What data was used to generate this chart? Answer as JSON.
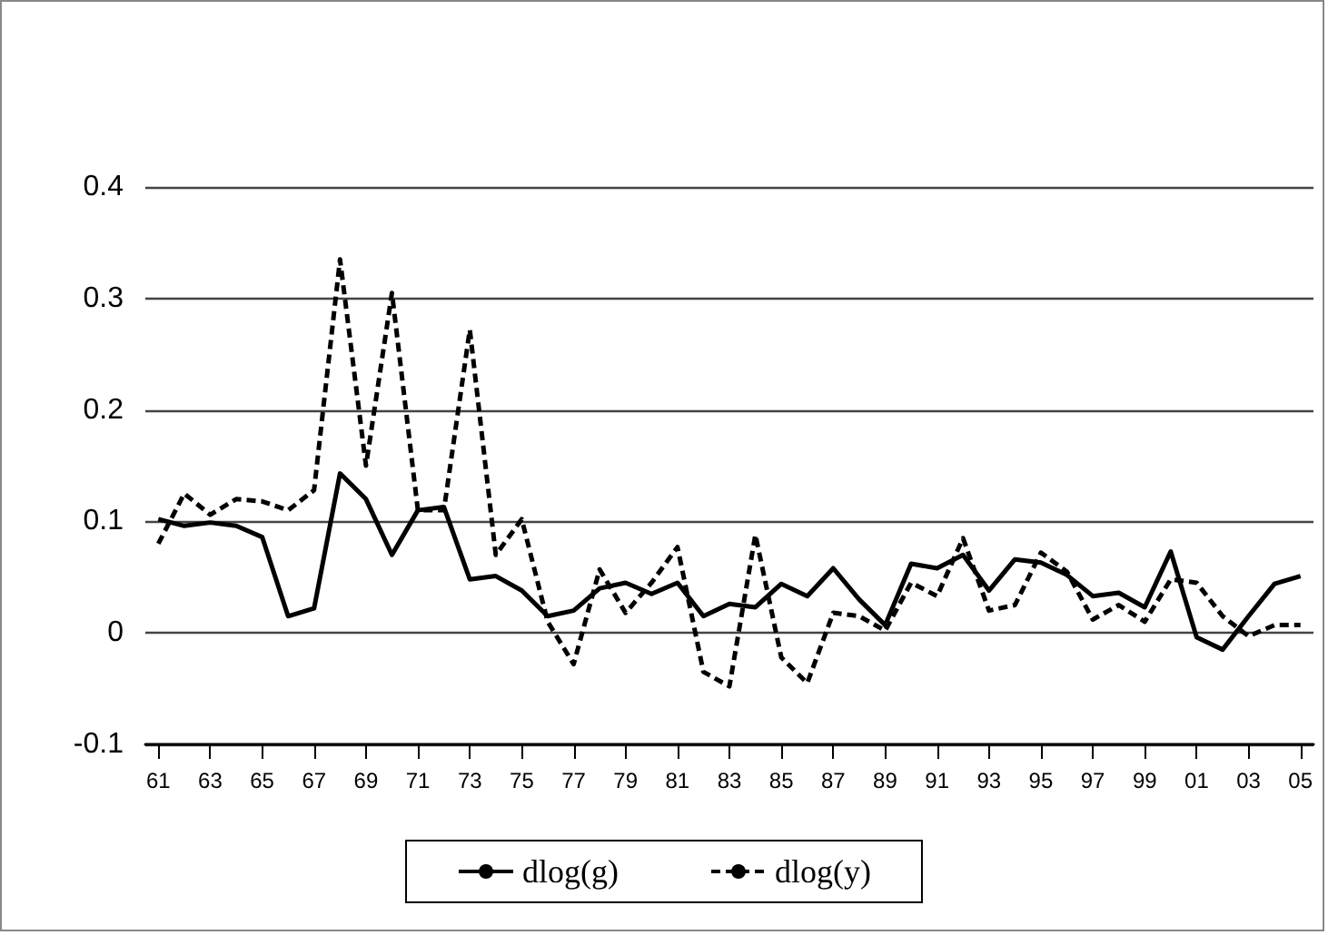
{
  "chart_data": {
    "type": "line",
    "categories": [
      "61",
      null,
      "63",
      null,
      "65",
      null,
      "67",
      null,
      "69",
      null,
      "71",
      null,
      "73",
      null,
      "75",
      null,
      "77",
      null,
      "79",
      null,
      "81",
      null,
      "83",
      null,
      "85",
      null,
      "87",
      null,
      "89",
      null,
      "91",
      null,
      "93",
      null,
      "95",
      null,
      "97",
      null,
      "99",
      null,
      "01",
      null,
      "03",
      null,
      "05"
    ],
    "series": [
      {
        "name": "dlog(g)",
        "color": "#000000",
        "line_style": "solid",
        "values": [
          0.102,
          0.096,
          0.099,
          0.096,
          0.086,
          0.015,
          0.022,
          0.143,
          0.12,
          0.07,
          0.11,
          0.113,
          0.048,
          0.051,
          0.038,
          0.015,
          0.02,
          0.04,
          0.045,
          0.035,
          0.045,
          0.015,
          0.026,
          0.023,
          0.044,
          0.033,
          0.058,
          0.03,
          0.007,
          0.062,
          0.058,
          0.07,
          0.038,
          0.066,
          0.063,
          0.052,
          0.033,
          0.036,
          0.023,
          0.073,
          -0.004,
          -0.015,
          0.015,
          0.044,
          0.051
        ]
      },
      {
        "name": "dlog(y)",
        "color": "#000000",
        "line_style": "dashed",
        "values": [
          0.08,
          0.125,
          0.106,
          0.12,
          0.118,
          0.11,
          0.128,
          0.335,
          0.15,
          0.305,
          0.11,
          0.11,
          0.272,
          0.07,
          0.102,
          0.01,
          -0.028,
          0.057,
          0.018,
          0.045,
          0.077,
          -0.035,
          -0.048,
          0.088,
          -0.022,
          -0.045,
          0.018,
          0.015,
          0.002,
          0.045,
          0.033,
          0.085,
          0.02,
          0.025,
          0.072,
          0.055,
          0.012,
          0.025,
          0.01,
          0.048,
          0.045,
          0.015,
          -0.003,
          0.007,
          0.007
        ]
      }
    ],
    "ylim": [
      -0.1,
      0.4
    ],
    "yticks": [
      -0.1,
      0,
      0.1,
      0.2,
      0.3,
      0.4
    ],
    "grid": "y",
    "legend": "bottom",
    "marker": "none"
  }
}
